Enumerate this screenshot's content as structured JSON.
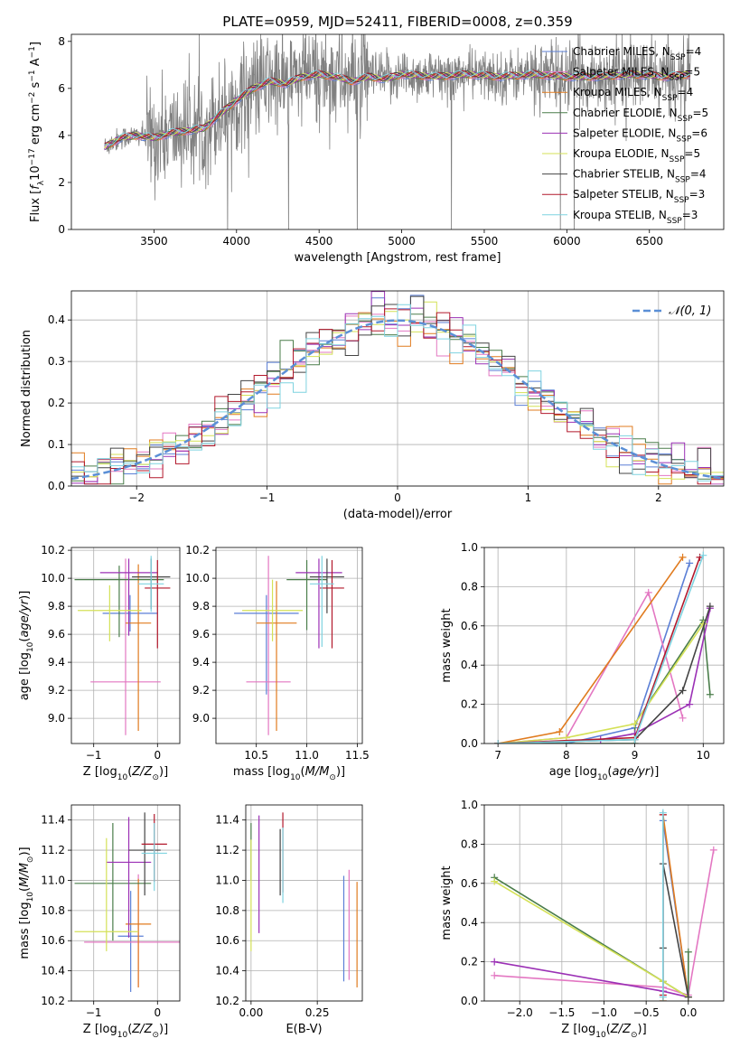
{
  "figure_title": "PLATE=0959, MJD=52411, FIBERID=0008, z=0.359",
  "models": [
    {
      "name": "Chabrier MILES",
      "nssp": "4",
      "color": "#5b7fd6"
    },
    {
      "name": "Salpeter MILES",
      "nssp": "5",
      "color": "#e377c2"
    },
    {
      "name": "Kroupa MILES",
      "nssp": "4",
      "color": "#e07b1f"
    },
    {
      "name": "Chabrier ELODIE",
      "nssp": "5",
      "color": "#4a7d4a"
    },
    {
      "name": "Salpeter ELODIE",
      "nssp": "6",
      "color": "#9b30b5"
    },
    {
      "name": "Kroupa ELODIE",
      "nssp": "5",
      "color": "#d4e157"
    },
    {
      "name": "Chabrier STELIB",
      "nssp": "4",
      "color": "#444444"
    },
    {
      "name": "Salpeter STELIB",
      "nssp": "3",
      "color": "#b2182b"
    },
    {
      "name": "Kroupa STELIB",
      "nssp": "3",
      "color": "#7fd3e0"
    }
  ],
  "chart_data": [
    {
      "id": "spectrum",
      "type": "line",
      "xlabel": "wavelength [Angstrom, rest frame]",
      "ylabel": "Flux [f_λ 10^-17 erg cm^-2 s^-1 A^-1]",
      "xlim": [
        3000,
        6950
      ],
      "ylim": [
        0,
        8.3
      ],
      "xticks": [
        3500,
        4000,
        4500,
        5000,
        5500,
        6000,
        6500
      ],
      "yticks": [
        0,
        2,
        4,
        6,
        8
      ],
      "grid": false,
      "legend": "top-right",
      "continuum": {
        "x": [
          3200,
          3300,
          3400,
          3500,
          3600,
          3700,
          3800,
          3900,
          4000,
          4100,
          4200,
          4300,
          4400,
          4500,
          4600,
          4700,
          4800,
          4900,
          5000,
          5200,
          5400,
          5600,
          5800,
          6000,
          6200,
          6400,
          6600,
          6750
        ],
        "y": [
          3.5,
          3.9,
          4.0,
          3.9,
          4.1,
          4.2,
          4.3,
          4.9,
          5.5,
          6.0,
          6.3,
          6.2,
          6.5,
          6.6,
          6.5,
          6.3,
          6.5,
          6.4,
          6.6,
          6.5,
          6.6,
          6.5,
          6.6,
          6.5,
          6.5,
          6.6,
          6.5,
          6.6
        ]
      }
    },
    {
      "id": "residuals",
      "type": "histogram",
      "xlabel": "(data-model)/error",
      "ylabel": "Normed distribution",
      "xlim": [
        -2.5,
        2.5
      ],
      "ylim": [
        0,
        0.47
      ],
      "xticks": [
        -2,
        -1,
        0,
        1,
        2
      ],
      "yticks": [
        0.0,
        0.1,
        0.2,
        0.3,
        0.4
      ],
      "grid": true,
      "legend": "top-right",
      "reference_curve": {
        "label": "𝒩(0, 1)",
        "mean": 0,
        "sigma": 1
      },
      "bin_width": 0.1
    },
    {
      "id": "age-vs-Z",
      "type": "errorbar",
      "xlabel": "Z [log10(Z/Z☉)]",
      "ylabel": "age [log10(age/yr)]",
      "xlim": [
        -1.35,
        0.35
      ],
      "ylim": [
        8.82,
        10.22
      ],
      "xticks": [
        -1,
        0
      ],
      "yticks": [
        9.0,
        9.2,
        9.4,
        9.6,
        9.8,
        10.0,
        10.2
      ],
      "grid": true,
      "points": [
        {
          "model": "Chabrier MILES",
          "x": -0.43,
          "xerr": 0.43,
          "y": 9.75,
          "yerr": [
            0.13,
            0.13
          ]
        },
        {
          "model": "Salpeter MILES",
          "x": -0.5,
          "xerr": 0.55,
          "y": 9.26,
          "yerr": [
            0.38,
            0.88
          ]
        },
        {
          "model": "Kroupa MILES",
          "x": -0.3,
          "xerr": 0.2,
          "y": 9.68,
          "yerr": [
            0.77,
            0.42
          ]
        },
        {
          "model": "Chabrier ELODIE",
          "x": -0.6,
          "xerr": 0.7,
          "y": 9.99,
          "yerr": [
            0.41,
            0.1
          ]
        },
        {
          "model": "Salpeter ELODIE",
          "x": -0.45,
          "xerr": 0.45,
          "y": 10.04,
          "yerr": [
            0.45,
            0.1
          ]
        },
        {
          "model": "Kroupa ELODIE",
          "x": -0.75,
          "xerr": 0.5,
          "y": 9.77,
          "yerr": [
            0.22,
            0.18
          ]
        },
        {
          "model": "Chabrier STELIB",
          "x": -0.1,
          "xerr": 0.3,
          "y": 10.01,
          "yerr": [
            0.23,
            0.13
          ]
        },
        {
          "model": "Salpeter STELIB",
          "x": 0.0,
          "xerr": 0.2,
          "y": 9.93,
          "yerr": [
            0.43,
            0.2
          ]
        },
        {
          "model": "Kroupa STELIB",
          "x": -0.1,
          "xerr": 0.2,
          "y": 9.96,
          "yerr": [
            0.2,
            0.2
          ]
        }
      ]
    },
    {
      "id": "age-vs-mass",
      "type": "errorbar",
      "xlabel": "mass [log10(M/M☉)]",
      "ylabel": "",
      "xlim": [
        10.1,
        11.55
      ],
      "ylim": [
        8.82,
        10.22
      ],
      "xticks": [
        10.5,
        11.0,
        11.5
      ],
      "yticks": [
        9.0,
        9.2,
        9.4,
        9.6,
        9.8,
        10.0,
        10.2
      ],
      "grid": true,
      "points": [
        {
          "model": "Chabrier MILES",
          "x": 10.6,
          "xerr": 0.32,
          "y": 9.75,
          "yerr": [
            0.58,
            0.13
          ]
        },
        {
          "model": "Salpeter MILES",
          "x": 10.62,
          "xerr": 0.22,
          "y": 9.26,
          "yerr": [
            0.38,
            0.9
          ]
        },
        {
          "model": "Kroupa MILES",
          "x": 10.7,
          "xerr": 0.2,
          "y": 9.68,
          "yerr": [
            0.77,
            0.3
          ]
        },
        {
          "model": "Chabrier ELODIE",
          "x": 11.0,
          "xerr": 0.2,
          "y": 9.99,
          "yerr": [
            0.36,
            0.14
          ]
        },
        {
          "model": "Salpeter ELODIE",
          "x": 11.12,
          "xerr": 0.23,
          "y": 10.04,
          "yerr": [
            0.54,
            0.1
          ]
        },
        {
          "model": "Kroupa ELODIE",
          "x": 10.66,
          "xerr": 0.3,
          "y": 9.77,
          "yerr": [
            0.22,
            0.22
          ]
        },
        {
          "model": "Chabrier STELIB",
          "x": 11.2,
          "xerr": 0.17,
          "y": 10.01,
          "yerr": [
            0.26,
            0.13
          ]
        },
        {
          "model": "Salpeter STELIB",
          "x": 11.25,
          "xerr": 0.12,
          "y": 9.93,
          "yerr": [
            0.43,
            0.2
          ]
        },
        {
          "model": "Kroupa STELIB",
          "x": 11.15,
          "xerr": 0.12,
          "y": 9.96,
          "yerr": [
            0.45,
            0.2
          ]
        }
      ]
    },
    {
      "id": "mass-weight-vs-age",
      "type": "line",
      "xlabel": "age [log10(age/yr)]",
      "ylabel": "mass weight",
      "xlim": [
        6.8,
        10.3
      ],
      "ylim": [
        0,
        1.0
      ],
      "xticks": [
        7,
        8,
        9,
        10
      ],
      "yticks": [
        0.0,
        0.2,
        0.4,
        0.6,
        0.8,
        1.0
      ],
      "grid": true,
      "series": [
        {
          "model": "Chabrier MILES",
          "x": [
            7.0,
            8.0,
            9.0,
            9.8
          ],
          "y": [
            0.0,
            0.0,
            0.08,
            0.92
          ]
        },
        {
          "model": "Salpeter MILES",
          "x": [
            7.0,
            8.0,
            9.2,
            9.7
          ],
          "y": [
            0.0,
            0.03,
            0.77,
            0.13
          ]
        },
        {
          "model": "Kroupa MILES",
          "x": [
            7.0,
            7.9,
            9.7
          ],
          "y": [
            0.0,
            0.06,
            0.95
          ]
        },
        {
          "model": "Chabrier ELODIE",
          "x": [
            7.0,
            9.0,
            9.0,
            10.0,
            10.1
          ],
          "y": [
            0.0,
            0.0,
            0.1,
            0.63,
            0.25
          ]
        },
        {
          "model": "Salpeter ELODIE",
          "x": [
            7.0,
            8.5,
            9.0,
            9.8,
            10.1
          ],
          "y": [
            0.0,
            0.02,
            0.05,
            0.2,
            0.69
          ]
        },
        {
          "model": "Kroupa ELODIE",
          "x": [
            7.0,
            8.0,
            9.0,
            10.0
          ],
          "y": [
            0.0,
            0.03,
            0.1,
            0.61
          ]
        },
        {
          "model": "Chabrier STELIB",
          "x": [
            7.0,
            9.0,
            9.7,
            10.1
          ],
          "y": [
            0.0,
            0.02,
            0.27,
            0.7
          ]
        },
        {
          "model": "Salpeter STELIB",
          "x": [
            7.0,
            9.0,
            9.95
          ],
          "y": [
            0.0,
            0.03,
            0.95
          ]
        },
        {
          "model": "Kroupa STELIB",
          "x": [
            7.0,
            9.0,
            10.0
          ],
          "y": [
            0.0,
            0.02,
            0.96
          ]
        }
      ]
    },
    {
      "id": "mass-vs-Z",
      "type": "errorbar",
      "xlabel": "Z [log10(Z/Z☉)]",
      "ylabel": "mass [log10(M/M☉)]",
      "xlim": [
        -1.35,
        0.35
      ],
      "ylim": [
        10.2,
        11.5
      ],
      "xticks": [
        -1,
        0
      ],
      "yticks": [
        10.2,
        10.4,
        10.6,
        10.8,
        11.0,
        11.2,
        11.4
      ],
      "grid": true,
      "points": [
        {
          "model": "Chabrier MILES",
          "x": -0.42,
          "xerr": 0.2,
          "y": 10.63,
          "yerr": [
            0.37,
            0.3
          ]
        },
        {
          "model": "Salpeter MILES",
          "x": -0.3,
          "xerr": 0.85,
          "y": 10.59,
          "yerr": [
            0.3,
            0.45
          ]
        },
        {
          "model": "Kroupa MILES",
          "x": -0.3,
          "xerr": 0.2,
          "y": 10.71,
          "yerr": [
            0.42,
            0.3
          ]
        },
        {
          "model": "Chabrier ELODIE",
          "x": -0.7,
          "xerr": 0.6,
          "y": 10.98,
          "yerr": [
            0.38,
            0.4
          ]
        },
        {
          "model": "Salpeter ELODIE",
          "x": -0.45,
          "xerr": 0.35,
          "y": 11.12,
          "yerr": [
            0.5,
            0.3
          ]
        },
        {
          "model": "Kroupa ELODIE",
          "x": -0.8,
          "xerr": 0.5,
          "y": 10.66,
          "yerr": [
            0.13,
            0.62
          ]
        },
        {
          "model": "Chabrier STELIB",
          "x": -0.2,
          "xerr": 0.25,
          "y": 11.2,
          "yerr": [
            0.3,
            0.25
          ]
        },
        {
          "model": "Salpeter STELIB",
          "x": -0.05,
          "xerr": 0.2,
          "y": 11.24,
          "yerr": [
            0.25,
            0.2
          ]
        },
        {
          "model": "Kroupa STELIB",
          "x": -0.05,
          "xerr": 0.2,
          "y": 11.18,
          "yerr": [
            0.25,
            0.2
          ]
        }
      ]
    },
    {
      "id": "mass-vs-EBV",
      "type": "errorbar",
      "xlabel": "E(B-V)",
      "ylabel": "",
      "xlim": [
        -0.02,
        0.42
      ],
      "ylim": [
        10.2,
        11.5
      ],
      "xticks": [
        0.0,
        0.25
      ],
      "xticklabels": [
        "0.00",
        "0.25"
      ],
      "yticks": [
        10.2,
        10.4,
        10.6,
        10.8,
        11.0,
        11.2,
        11.4
      ],
      "grid": true,
      "points": [
        {
          "model": "Chabrier MILES",
          "x": 0.35,
          "y": 10.63,
          "yerr": [
            0.3,
            0.4
          ]
        },
        {
          "model": "Salpeter MILES",
          "x": 0.37,
          "y": 10.71,
          "yerr": [
            0.37,
            0.36
          ]
        },
        {
          "model": "Kroupa MILES",
          "x": 0.4,
          "y": 10.64,
          "yerr": [
            0.35,
            0.35
          ]
        },
        {
          "model": "Chabrier ELODIE",
          "x": 0.0,
          "y": 11.2,
          "yerr": [
            0.2,
            0.18
          ]
        },
        {
          "model": "Salpeter ELODIE",
          "x": 0.03,
          "y": 11.05,
          "yerr": [
            0.4,
            0.38
          ]
        },
        {
          "model": "Kroupa ELODIE",
          "x": 0.0,
          "y": 10.9,
          "yerr": [
            0.37,
            0.37
          ]
        },
        {
          "model": "Chabrier STELIB",
          "x": 0.11,
          "y": 11.12,
          "yerr": [
            0.22,
            0.22
          ]
        },
        {
          "model": "Salpeter STELIB",
          "x": 0.12,
          "y": 11.2,
          "yerr": [
            0.28,
            0.25
          ]
        },
        {
          "model": "Kroupa STELIB",
          "x": 0.12,
          "y": 11.1,
          "yerr": [
            0.25,
            0.25
          ]
        }
      ]
    },
    {
      "id": "mass-weight-vs-Z",
      "type": "line",
      "xlabel": "Z [log10(Z/Z☉)]",
      "ylabel": "mass weight",
      "xlim": [
        -2.42,
        0.42
      ],
      "ylim": [
        0,
        1.0
      ],
      "xticks": [
        -2.0,
        -1.5,
        -1.0,
        -0.5,
        0.0
      ],
      "yticks": [
        0.0,
        0.2,
        0.4,
        0.6,
        0.8,
        1.0
      ],
      "grid": true,
      "series": [
        {
          "model": "Chabrier MILES",
          "x": [
            -0.3,
            -0.3,
            0.0
          ],
          "y": [
            0.0,
            0.92,
            0.02
          ]
        },
        {
          "model": "Salpeter MILES",
          "x": [
            -2.3,
            -0.3,
            0.0,
            0.3
          ],
          "y": [
            0.13,
            0.07,
            0.03,
            0.77
          ]
        },
        {
          "model": "Kroupa MILES",
          "x": [
            -0.3,
            -0.3,
            0.0
          ],
          "y": [
            0.0,
            0.95,
            0.02
          ]
        },
        {
          "model": "Chabrier ELODIE",
          "x": [
            -2.3,
            -0.3,
            0.0,
            0.0
          ],
          "y": [
            0.63,
            0.1,
            0.02,
            0.25
          ]
        },
        {
          "model": "Salpeter ELODIE",
          "x": [
            -2.3,
            -0.3,
            0.0
          ],
          "y": [
            0.2,
            0.05,
            0.02
          ]
        },
        {
          "model": "Kroupa ELODIE",
          "x": [
            -2.3,
            -0.3,
            0.0
          ],
          "y": [
            0.61,
            0.1,
            0.02
          ]
        },
        {
          "model": "Chabrier STELIB",
          "x": [
            -0.3,
            -0.3,
            0.0
          ],
          "y": [
            0.27,
            0.7,
            0.02
          ]
        },
        {
          "model": "Salpeter STELIB",
          "x": [
            -0.3,
            -0.3
          ],
          "y": [
            0.03,
            0.95
          ]
        },
        {
          "model": "Kroupa STELIB",
          "x": [
            -0.3,
            -0.3
          ],
          "y": [
            0.02,
            0.96
          ]
        }
      ]
    }
  ]
}
